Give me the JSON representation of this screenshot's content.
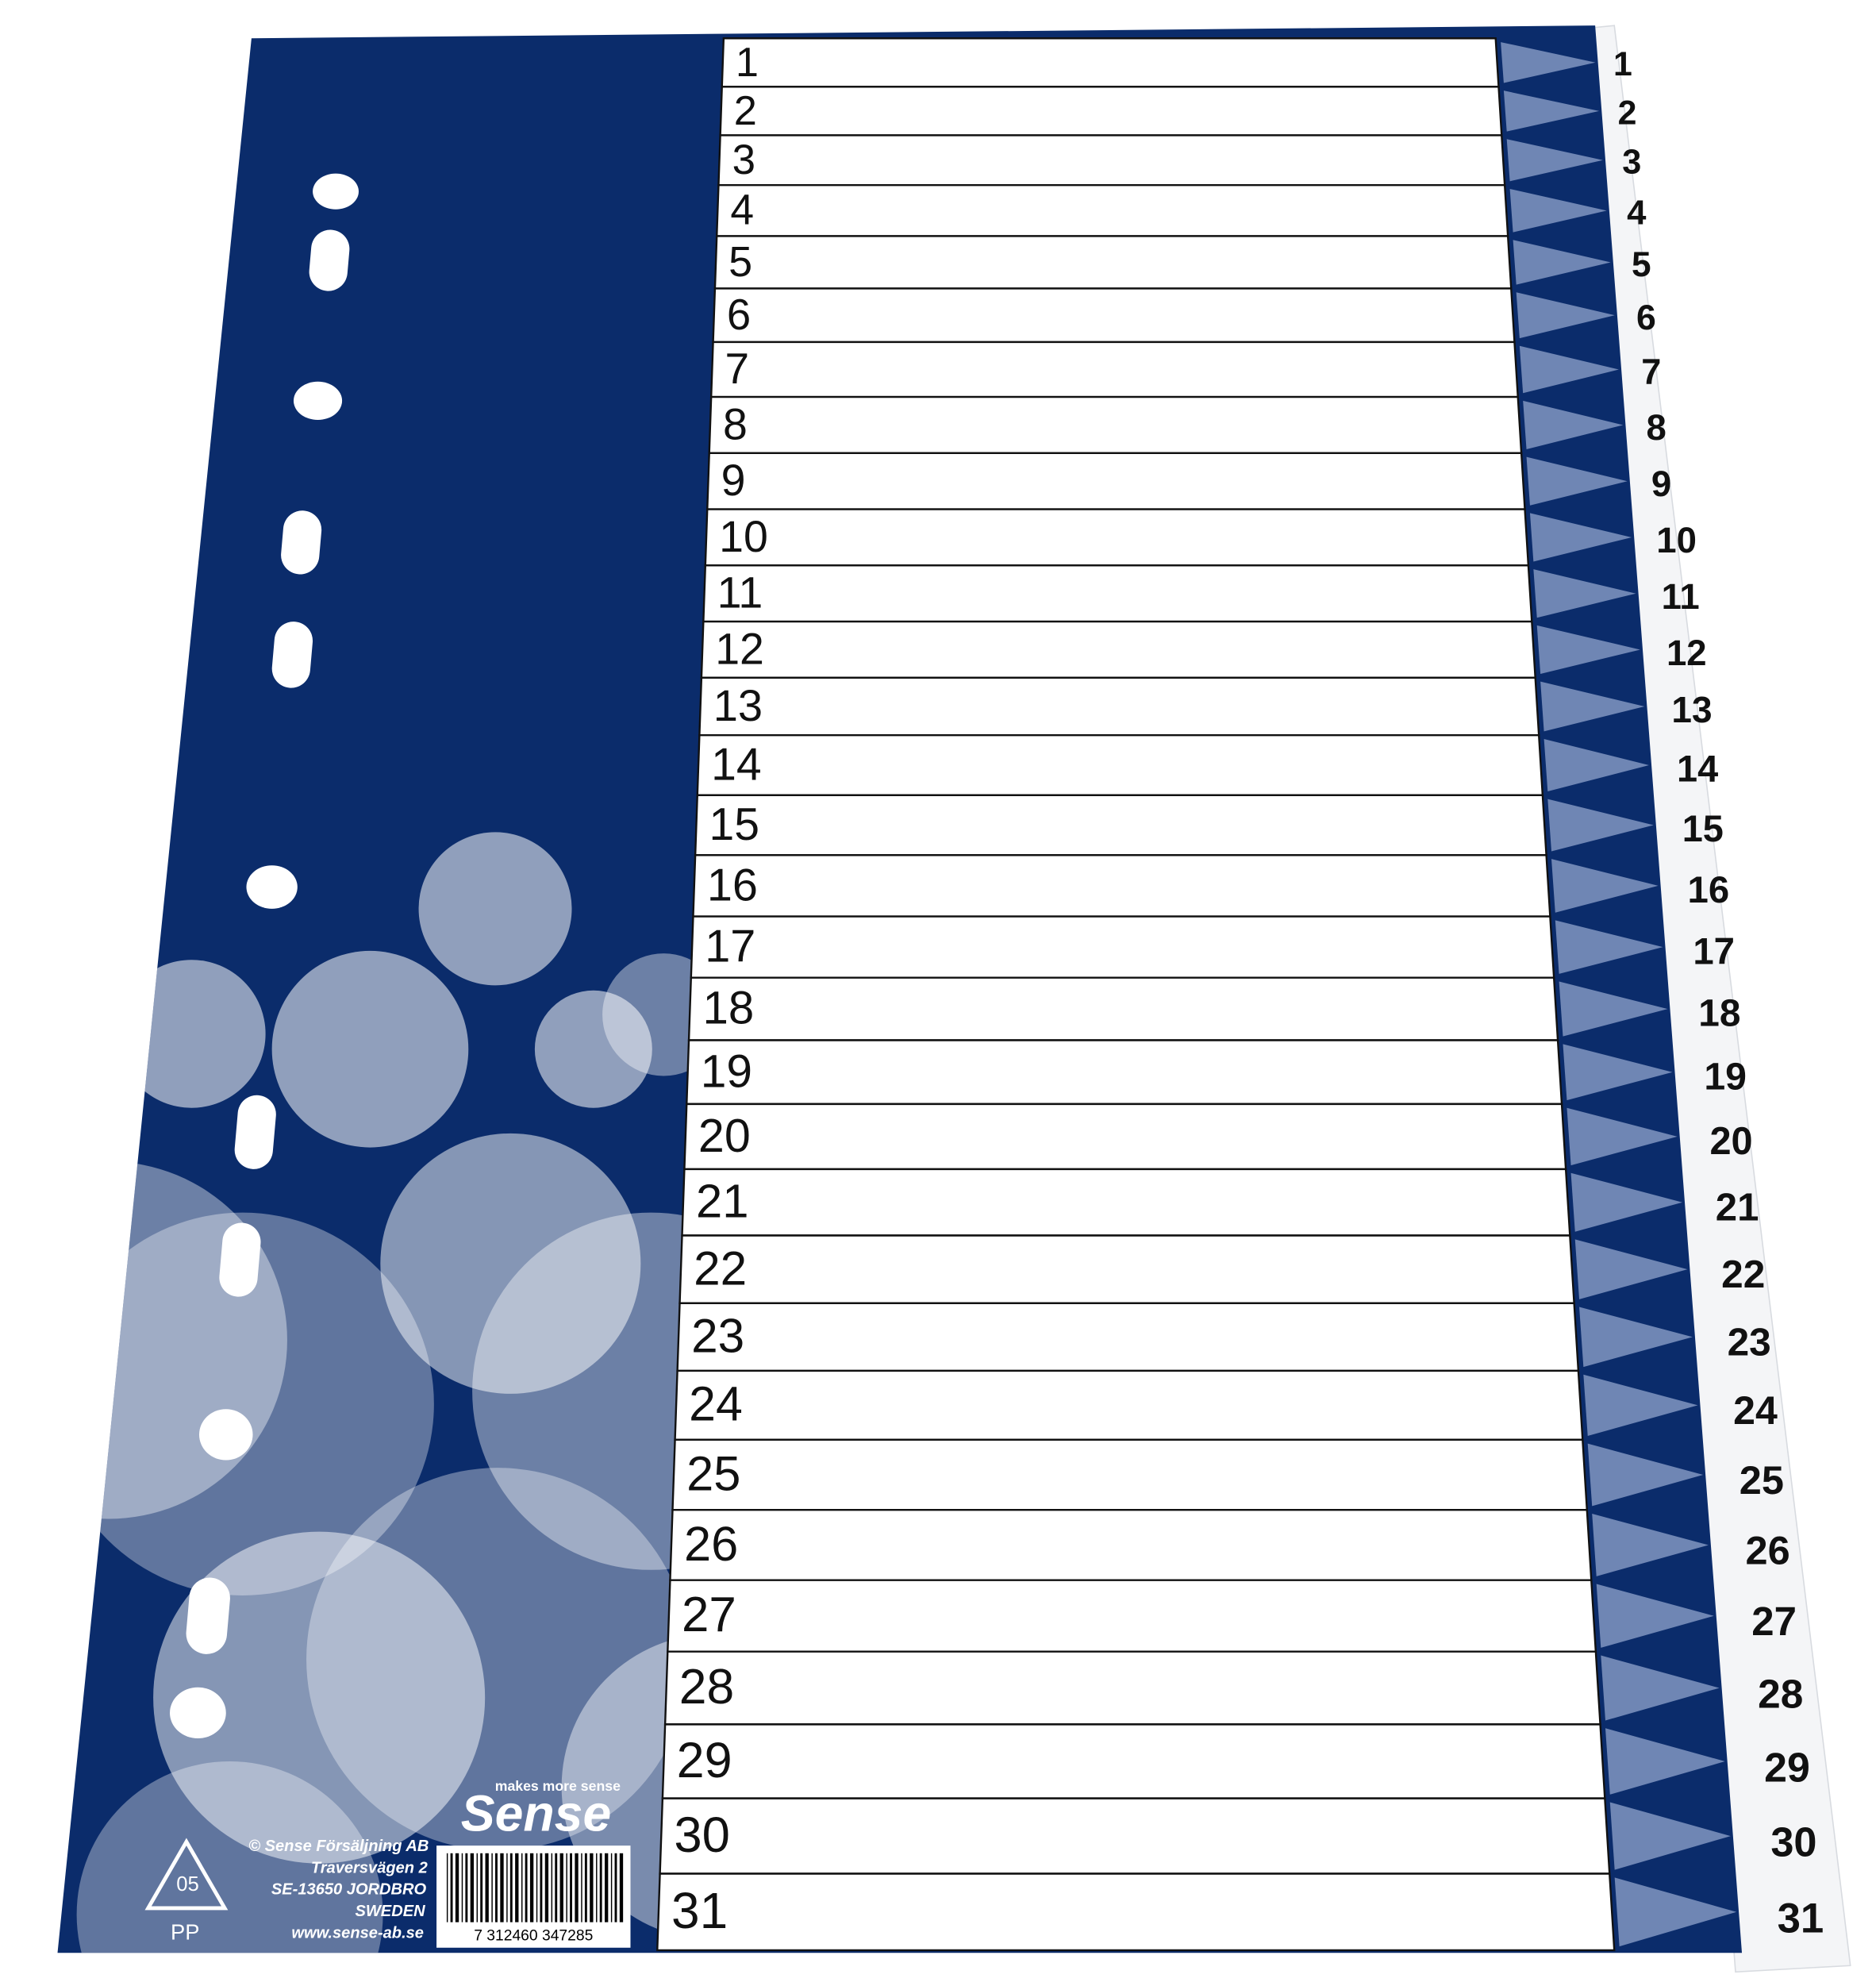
{
  "rows": [
    1,
    2,
    3,
    4,
    5,
    6,
    7,
    8,
    9,
    10,
    11,
    12,
    13,
    14,
    15,
    16,
    17,
    18,
    19,
    20,
    21,
    22,
    23,
    24,
    25,
    26,
    27,
    28,
    29,
    30,
    31
  ],
  "tabs": [
    1,
    2,
    3,
    4,
    5,
    6,
    7,
    8,
    9,
    10,
    11,
    12,
    13,
    14,
    15,
    16,
    17,
    18,
    19,
    20,
    21,
    22,
    23,
    24,
    25,
    26,
    27,
    28,
    29,
    30,
    31
  ],
  "logo": {
    "slogan": "makes more sense",
    "brand": "Sense"
  },
  "address": [
    "© Sense Försäljning AB",
    "Traversvägen 2",
    "SE-13650 JORDBRO",
    "SWEDEN",
    "www.sense-ab.se"
  ],
  "barcode": "7 312460 347285",
  "recycle": {
    "code": "05",
    "material": "PP"
  }
}
